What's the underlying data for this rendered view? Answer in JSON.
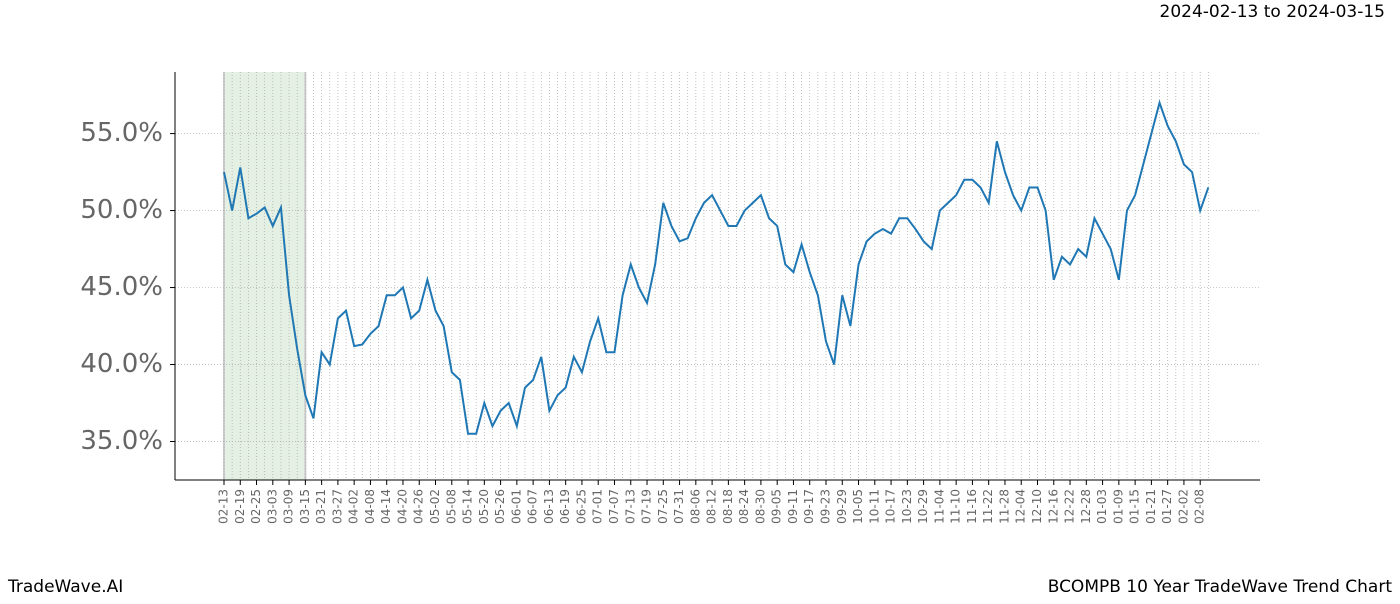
{
  "chart_data": {
    "type": "line",
    "subtitle": "2024-02-13 to 2024-03-15",
    "footer_left": "TradeWave.AI",
    "footer_right": "BCOMPB 10 Year TradeWave Trend Chart",
    "categories": [
      "02-13",
      null,
      "02-19",
      null,
      "02-25",
      null,
      "03-03",
      null,
      "03-09",
      null,
      "03-15",
      null,
      "03-21",
      null,
      "03-27",
      null,
      "04-02",
      null,
      "04-08",
      null,
      "04-14",
      null,
      "04-20",
      null,
      "04-26",
      null,
      "05-02",
      null,
      "05-08",
      null,
      "05-14",
      null,
      "05-20",
      null,
      "05-26",
      null,
      "06-01",
      null,
      "06-07",
      null,
      "06-13",
      null,
      "06-19",
      null,
      "06-25",
      null,
      "07-01",
      null,
      "07-07",
      null,
      "07-13",
      null,
      "07-19",
      null,
      "07-25",
      null,
      "07-31",
      null,
      "08-06",
      null,
      "08-12",
      null,
      "08-18",
      null,
      "08-24",
      null,
      "08-30",
      null,
      "09-05",
      null,
      "09-11",
      null,
      "09-17",
      null,
      "09-23",
      null,
      "09-29",
      null,
      "10-05",
      null,
      "10-11",
      null,
      "10-17",
      null,
      "10-23",
      null,
      "10-29",
      null,
      "11-04",
      null,
      "11-10",
      null,
      "11-16",
      null,
      "11-22",
      null,
      "11-28",
      null,
      "12-04",
      null,
      "12-10",
      null,
      "12-16",
      null,
      "12-22",
      null,
      "12-28",
      null,
      "01-03",
      null,
      "01-09",
      null,
      "01-15",
      null,
      "01-21",
      null,
      "01-27",
      null,
      "02-02",
      null,
      "02-08",
      null
    ],
    "series": [
      {
        "name": "BCOMPB",
        "color": "#1f77b4",
        "values": [
          52.5,
          50.0,
          52.8,
          49.5,
          49.8,
          50.2,
          49.0,
          50.2,
          44.5,
          41.0,
          38.0,
          36.5,
          40.8,
          40.0,
          43.0,
          43.5,
          41.2,
          41.3,
          42.0,
          42.5,
          44.5,
          44.5,
          45.0,
          43.0,
          43.5,
          45.5,
          43.5,
          42.5,
          39.5,
          39.0,
          35.5,
          35.5,
          37.5,
          36.0,
          37.0,
          37.5,
          36.0,
          38.5,
          39.0,
          40.5,
          37.0,
          38.0,
          38.5,
          40.5,
          39.5,
          41.5,
          43.0,
          40.8,
          40.8,
          44.5,
          46.5,
          45.0,
          44.0,
          46.5,
          50.5,
          49.0,
          48.0,
          48.2,
          49.5,
          50.5,
          51.0,
          50.0,
          49.0,
          49.0,
          50.0,
          50.5,
          51.0,
          49.5,
          49.0,
          46.5,
          46.0,
          47.8,
          46.0,
          44.5,
          41.5,
          40.0,
          44.5,
          42.5,
          46.5,
          48.0,
          48.5,
          48.8,
          48.5,
          49.5,
          49.5,
          48.8,
          48.0,
          47.5,
          50.0,
          50.5,
          51.0,
          52.0,
          52.0,
          51.5,
          50.5,
          54.5,
          52.5,
          51.0,
          50.0,
          51.5,
          51.5,
          50.0,
          45.5,
          47.0,
          46.5,
          47.5,
          47.0,
          49.5,
          48.5,
          47.5,
          45.5,
          50.0,
          51.0,
          53.0,
          55.0,
          57.0,
          55.5,
          54.5,
          53.0,
          52.5,
          50.0,
          51.5
        ]
      }
    ],
    "highlight": {
      "from": "02-13",
      "to": "03-15",
      "color": "#e3f0e3"
    },
    "ylim": [
      32.5,
      59.0
    ],
    "yticks": [
      {
        "value": 35,
        "label": "35.0%"
      },
      {
        "value": 40,
        "label": "40.0%"
      },
      {
        "value": 45,
        "label": "45.0%"
      },
      {
        "value": 50,
        "label": "50.0%"
      },
      {
        "value": 55,
        "label": "55.0%"
      }
    ],
    "grid": true
  }
}
